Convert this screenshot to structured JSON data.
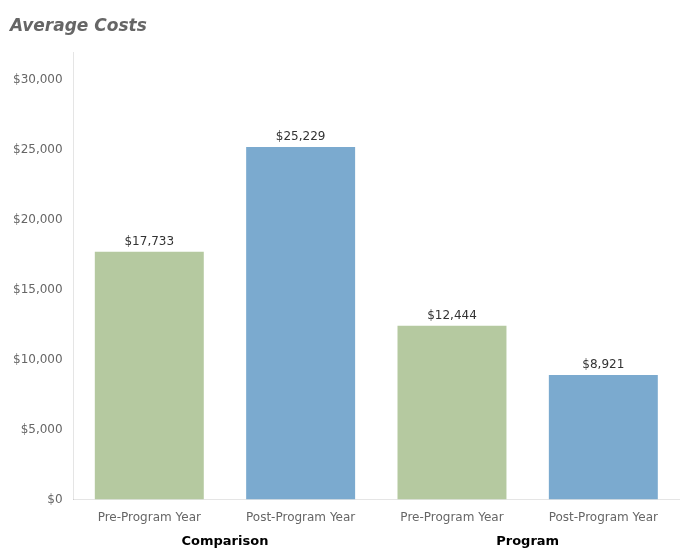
{
  "chart_data": {
    "type": "bar",
    "title": "Average Costs",
    "categories": [
      "Pre-Program Year",
      "Post-Program Year",
      "Pre-Program Year",
      "Post-Program Year"
    ],
    "groups": [
      "Comparison",
      "Comparison",
      "Program",
      "Program"
    ],
    "values": [
      17733,
      25229,
      12444,
      8921
    ],
    "value_labels": [
      "$17,733",
      "$25,229",
      "$12,444",
      "$8,921"
    ],
    "colors": [
      "#b5c9a0",
      "#7baacf",
      "#b5c9a0",
      "#7baacf"
    ],
    "data_labels": true,
    "ylim": [
      0,
      32000
    ],
    "yticks": [
      {
        "value": 0,
        "label": "$0"
      },
      {
        "value": 5000,
        "label": "$5,000"
      },
      {
        "value": 10000,
        "label": "$10,000"
      },
      {
        "value": 15000,
        "label": "$15,000"
      },
      {
        "value": 20000,
        "label": "$20,000"
      },
      {
        "value": 25000,
        "label": "$25,000"
      },
      {
        "value": 30000,
        "label": "$30,000"
      }
    ],
    "grid": false
  }
}
